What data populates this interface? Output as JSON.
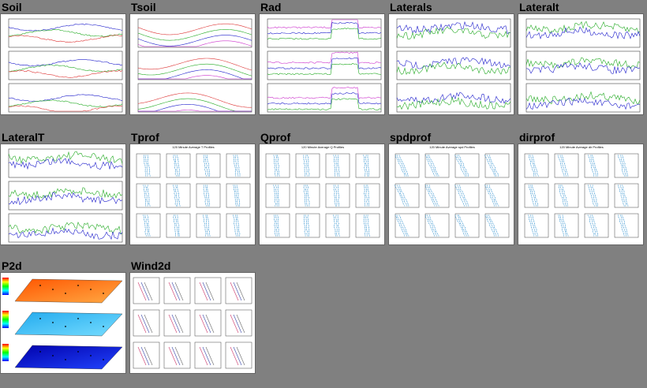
{
  "tiles": [
    {
      "id": "soil",
      "label": "Soil"
    },
    {
      "id": "tsoil",
      "label": "Tsoil"
    },
    {
      "id": "rad",
      "label": "Rad"
    },
    {
      "id": "laterals",
      "label": "Laterals"
    },
    {
      "id": "lateralt",
      "label": "Lateralt"
    },
    {
      "id": "lateralT2",
      "label": "LateralT"
    },
    {
      "id": "tprof",
      "label": "Tprof",
      "subtitle": "120 Minute Average T Profiles"
    },
    {
      "id": "qprof",
      "label": "Qprof",
      "subtitle": "120 Minute Average Q Profiles"
    },
    {
      "id": "spdprof",
      "label": "spdprof",
      "subtitle": "120 Minute Average spd Profiles"
    },
    {
      "id": "dirprof",
      "label": "dirprof",
      "subtitle": "120 Minute Average dir Profiles"
    },
    {
      "id": "p2d",
      "label": "P2d"
    },
    {
      "id": "wind2d",
      "label": "Wind2d"
    }
  ],
  "colors": {
    "background": "#808080",
    "blue": "#1f1fcc",
    "green": "#22aa22",
    "red": "#dd3333",
    "magenta": "#cc33cc"
  }
}
